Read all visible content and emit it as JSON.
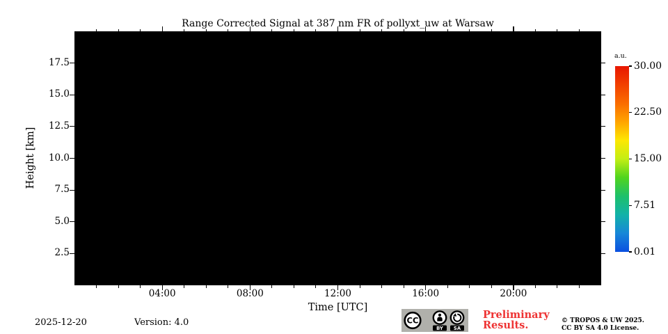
{
  "chart_data": {
    "type": "heatmap",
    "title": "Range Corrected Signal at 387 nm FR of pollyxt_uw at Warsaw",
    "xlabel": "Time [UTC]",
    "ylabel": "Height [km]",
    "x_range_hours": [
      0,
      24
    ],
    "x_major_ticks": [
      {
        "hour": 4,
        "label": "04:00"
      },
      {
        "hour": 8,
        "label": "08:00"
      },
      {
        "hour": 12,
        "label": "12:00"
      },
      {
        "hour": 16,
        "label": "16:00"
      },
      {
        "hour": 20,
        "label": "20:00"
      }
    ],
    "x_minor_tick_every_hours": 1,
    "y_range_km": [
      0,
      20
    ],
    "y_major_ticks": [
      {
        "value": 17.5,
        "label": "17.5"
      },
      {
        "value": 15.0,
        "label": "15.0"
      },
      {
        "value": 12.5,
        "label": "12.5"
      },
      {
        "value": 10.0,
        "label": "10.0"
      },
      {
        "value": 7.5,
        "label": "7.5"
      },
      {
        "value": 5.0,
        "label": "5.0"
      },
      {
        "value": 2.5,
        "label": "2.5"
      }
    ],
    "plot_area_fill": "#000000",
    "data_note": "plot area uniformly black — no signal rendered",
    "grid": false,
    "colorbar": {
      "unit_label": "a.u.",
      "range": [
        0.01,
        30.0
      ],
      "ticks": [
        {
          "value": 30.0,
          "label": "30.00"
        },
        {
          "value": 22.5,
          "label": "22.50"
        },
        {
          "value": 15.0,
          "label": "15.00"
        },
        {
          "value": 7.51,
          "label": "7.51"
        },
        {
          "value": 0.01,
          "label": "0.01"
        }
      ],
      "gradient_colors_top_to_bottom": [
        "#e81600",
        "#f24000",
        "#fa6c00",
        "#ffa400",
        "#fde702",
        "#c3ee14",
        "#50d41e",
        "#1dc06b",
        "#12b2a8",
        "#1787d8",
        "#0b50e0"
      ]
    }
  },
  "footer": {
    "date": "2025-12-20",
    "version": "Version: 4.0",
    "preliminary_line1": "Preliminary",
    "preliminary_line2": "Results.",
    "preliminary_color": "#ee3333",
    "copyright_line1": "© TROPOS & UW 2025.",
    "copyright_line2": "CC BY SA 4.0 License.",
    "cc_badge": {
      "background": "#b0b0ab",
      "cc_label": "CC",
      "by_label": "BY",
      "sa_label": "SA"
    }
  }
}
